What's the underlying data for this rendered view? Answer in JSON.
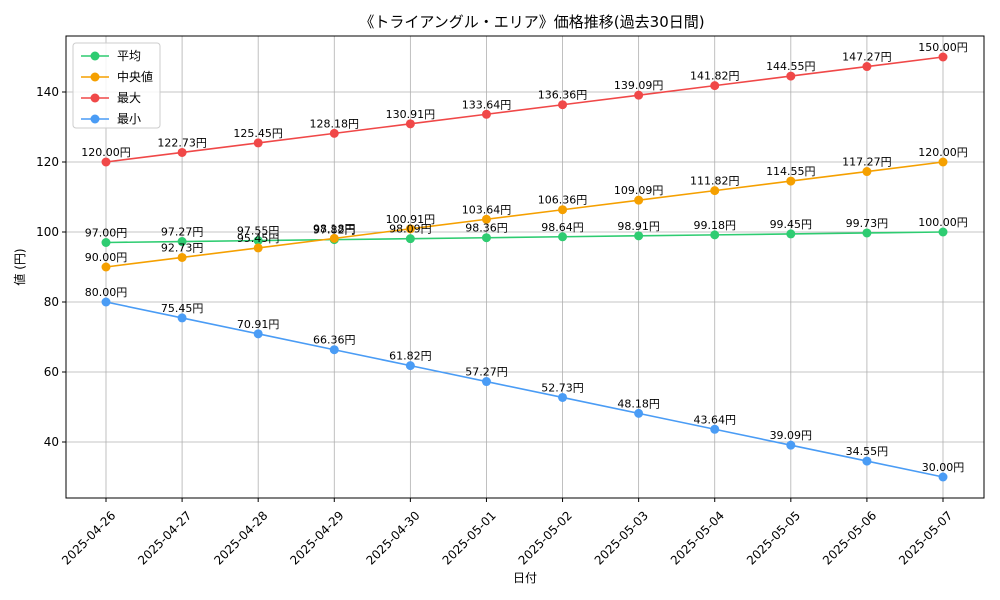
{
  "chart_data": {
    "type": "line",
    "title": "《トライアングル・エリア》価格推移(過去30日間)",
    "xlabel": "日付",
    "ylabel": "値 (円)",
    "categories": [
      "2025-04-26",
      "2025-04-27",
      "2025-04-28",
      "2025-04-29",
      "2025-04-30",
      "2025-05-01",
      "2025-05-02",
      "2025-05-03",
      "2025-05-04",
      "2025-05-05",
      "2025-05-06",
      "2025-05-07"
    ],
    "ylim": [
      24,
      156
    ],
    "yticks": [
      40,
      60,
      80,
      100,
      120,
      140
    ],
    "grid": true,
    "legend_position": "top-left",
    "value_suffix": "円",
    "series": [
      {
        "name": "平均",
        "color": "#2ecc71",
        "values": [
          97.0,
          97.27,
          97.55,
          97.82,
          98.09,
          98.36,
          98.64,
          98.91,
          99.18,
          99.45,
          99.73,
          100.0
        ]
      },
      {
        "name": "中央値",
        "color": "#f5a000",
        "values": [
          90.0,
          92.73,
          95.45,
          98.18,
          100.91,
          103.64,
          106.36,
          109.09,
          111.82,
          114.55,
          117.27,
          120.0
        ]
      },
      {
        "name": "最大",
        "color": "#f04848",
        "values": [
          120.0,
          122.73,
          125.45,
          128.18,
          130.91,
          133.64,
          136.36,
          139.09,
          141.82,
          144.55,
          147.27,
          150.0
        ]
      },
      {
        "name": "最小",
        "color": "#4a9cf5",
        "values": [
          80.0,
          75.45,
          70.91,
          66.36,
          61.82,
          57.27,
          52.73,
          48.18,
          43.64,
          39.09,
          34.55,
          30.0
        ]
      }
    ]
  }
}
